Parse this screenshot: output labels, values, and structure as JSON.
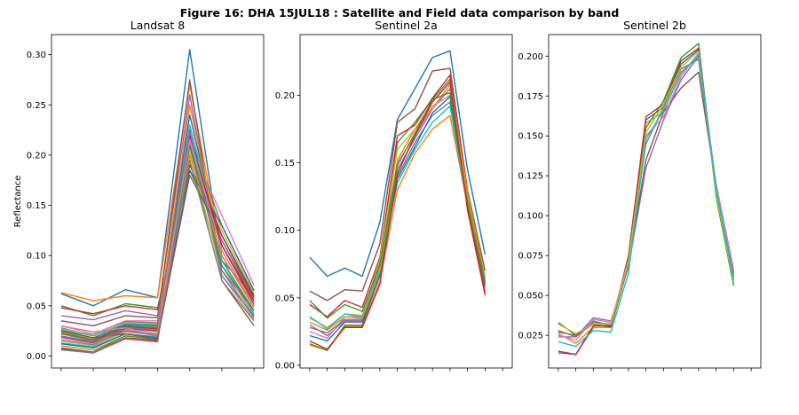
{
  "figure": {
    "title": "Figure 16: DHA 15JUL18 : Satellite and Field data comparison by band"
  },
  "palette": [
    "#1f77b4",
    "#ff7f0e",
    "#2ca02c",
    "#d62728",
    "#9467bd",
    "#8c564b",
    "#e377c2",
    "#7f7f7f",
    "#bcbd22",
    "#17becf"
  ],
  "chart_data": [
    {
      "type": "line",
      "title": "Landsat 8",
      "ylabel": "Reflectance",
      "xlabel": "",
      "grid": false,
      "ylim": [
        -0.012,
        0.32
      ],
      "yticks": [
        "0.00",
        "0.05",
        "0.10",
        "0.15",
        "0.20",
        "0.25",
        "0.30"
      ],
      "x": [
        1,
        2,
        3,
        4,
        5,
        6,
        7
      ],
      "series": [
        {
          "values": [
            0.062,
            0.05,
            0.066,
            0.058,
            0.305,
            0.095,
            0.06
          ]
        },
        {
          "values": [
            0.063,
            0.055,
            0.06,
            0.058,
            0.27,
            0.1,
            0.05
          ]
        },
        {
          "values": [
            0.05,
            0.04,
            0.052,
            0.048,
            0.185,
            0.115,
            0.058
          ]
        },
        {
          "values": [
            0.048,
            0.042,
            0.05,
            0.046,
            0.19,
            0.12,
            0.06
          ]
        },
        {
          "values": [
            0.04,
            0.036,
            0.045,
            0.04,
            0.26,
            0.085,
            0.045
          ]
        },
        {
          "values": [
            0.035,
            0.03,
            0.04,
            0.038,
            0.275,
            0.075,
            0.03
          ]
        },
        {
          "values": [
            0.03,
            0.022,
            0.035,
            0.035,
            0.21,
            0.14,
            0.07
          ]
        },
        {
          "values": [
            0.028,
            0.02,
            0.034,
            0.033,
            0.22,
            0.13,
            0.065
          ]
        },
        {
          "values": [
            0.027,
            0.021,
            0.033,
            0.032,
            0.215,
            0.125,
            0.062
          ]
        },
        {
          "values": [
            0.026,
            0.02,
            0.032,
            0.031,
            0.23,
            0.11,
            0.055
          ]
        },
        {
          "values": [
            0.025,
            0.018,
            0.031,
            0.03,
            0.24,
            0.105,
            0.05
          ]
        },
        {
          "values": [
            0.024,
            0.017,
            0.03,
            0.029,
            0.25,
            0.1,
            0.048
          ]
        },
        {
          "values": [
            0.023,
            0.016,
            0.03,
            0.028,
            0.225,
            0.095,
            0.045
          ]
        },
        {
          "values": [
            0.022,
            0.015,
            0.029,
            0.027,
            0.205,
            0.12,
            0.058
          ]
        },
        {
          "values": [
            0.02,
            0.014,
            0.028,
            0.026,
            0.2,
            0.115,
            0.055
          ]
        },
        {
          "values": [
            0.019,
            0.013,
            0.027,
            0.025,
            0.21,
            0.11,
            0.052
          ]
        },
        {
          "values": [
            0.018,
            0.012,
            0.026,
            0.024,
            0.22,
            0.09,
            0.04
          ]
        },
        {
          "values": [
            0.016,
            0.011,
            0.025,
            0.022,
            0.195,
            0.085,
            0.038
          ]
        },
        {
          "values": [
            0.015,
            0.01,
            0.024,
            0.021,
            0.205,
            0.08,
            0.036
          ]
        },
        {
          "values": [
            0.013,
            0.009,
            0.022,
            0.019,
            0.215,
            0.095,
            0.042
          ]
        },
        {
          "values": [
            0.012,
            0.008,
            0.022,
            0.018,
            0.185,
            0.13,
            0.065
          ]
        },
        {
          "values": [
            0.01,
            0.006,
            0.02,
            0.017,
            0.2,
            0.1,
            0.05
          ]
        },
        {
          "values": [
            0.008,
            0.004,
            0.02,
            0.016,
            0.21,
            0.09,
            0.045
          ]
        },
        {
          "values": [
            0.007,
            0.003,
            0.018,
            0.015,
            0.22,
            0.11,
            0.055
          ]
        },
        {
          "values": [
            0.006,
            0.003,
            0.017,
            0.014,
            0.225,
            0.08,
            0.04
          ]
        },
        {
          "values": [
            0.025,
            0.018,
            0.022,
            0.017,
            0.18,
            0.12,
            0.06
          ]
        },
        {
          "values": [
            0.03,
            0.024,
            0.028,
            0.02,
            0.215,
            0.105,
            0.05
          ]
        },
        {
          "values": [
            0.022,
            0.015,
            0.025,
            0.02,
            0.195,
            0.075,
            0.035
          ]
        }
      ]
    },
    {
      "type": "line",
      "title": "Sentinel 2a",
      "ylabel": "",
      "xlabel": "",
      "grid": false,
      "ylim": [
        -0.002,
        0.245
      ],
      "yticks": [
        "0.00",
        "0.05",
        "0.10",
        "0.15",
        "0.20"
      ],
      "x": [
        1,
        2,
        3,
        4,
        5,
        6,
        7,
        8,
        9,
        10,
        11,
        12
      ],
      "series": [
        {
          "values": [
            0.08,
            0.066,
            0.072,
            0.066,
            0.106,
            0.182,
            0.205,
            0.228,
            0.233,
            0.145,
            0.082,
            null
          ]
        },
        {
          "values": [
            0.015,
            0.011,
            0.03,
            0.03,
            0.062,
            0.13,
            0.157,
            0.175,
            0.185,
            0.118,
            0.058,
            null
          ]
        },
        {
          "values": [
            0.016,
            0.011,
            0.029,
            0.029,
            0.068,
            0.165,
            0.18,
            0.197,
            0.212,
            0.125,
            0.062,
            null
          ]
        },
        {
          "values": [
            0.045,
            0.036,
            0.048,
            0.043,
            0.08,
            0.17,
            0.178,
            0.198,
            0.215,
            0.115,
            0.052,
            null
          ]
        },
        {
          "values": [
            0.03,
            0.022,
            0.033,
            0.033,
            0.07,
            0.145,
            0.168,
            0.19,
            0.205,
            0.12,
            0.058,
            null
          ]
        },
        {
          "values": [
            0.055,
            0.048,
            0.056,
            0.055,
            0.09,
            0.18,
            0.19,
            0.218,
            0.22,
            0.13,
            0.07,
            null
          ]
        },
        {
          "values": [
            0.025,
            0.02,
            0.036,
            0.036,
            0.075,
            0.15,
            0.17,
            0.192,
            0.2,
            0.12,
            0.06,
            null
          ]
        },
        {
          "values": [
            0.028,
            0.024,
            0.034,
            0.034,
            0.072,
            0.14,
            0.165,
            0.185,
            0.195,
            0.118,
            0.058,
            null
          ]
        },
        {
          "values": [
            0.035,
            0.028,
            0.038,
            0.037,
            0.078,
            0.16,
            0.175,
            0.195,
            0.21,
            0.122,
            0.062,
            null
          ]
        },
        {
          "values": [
            0.036,
            0.027,
            0.038,
            0.036,
            0.072,
            0.135,
            0.16,
            0.18,
            0.192,
            0.118,
            0.062,
            null
          ]
        },
        {
          "values": [
            0.022,
            0.018,
            0.032,
            0.032,
            0.066,
            0.138,
            0.162,
            0.187,
            0.199,
            0.12,
            0.06,
            null
          ]
        },
        {
          "values": [
            0.032,
            0.026,
            0.036,
            0.035,
            0.07,
            0.152,
            0.175,
            0.19,
            0.208,
            0.128,
            0.065,
            null
          ]
        },
        {
          "values": [
            0.048,
            0.035,
            0.045,
            0.04,
            0.075,
            0.148,
            0.172,
            0.197,
            0.202,
            0.119,
            0.062,
            null
          ]
        },
        {
          "values": [
            0.018,
            0.012,
            0.028,
            0.028,
            0.06,
            0.142,
            0.17,
            0.195,
            0.21,
            0.116,
            0.054,
            null
          ]
        }
      ]
    },
    {
      "type": "line",
      "title": "Sentinel 2b",
      "ylabel": "",
      "xlabel": "",
      "grid": false,
      "ylim": [
        0.0045,
        0.2135
      ],
      "yticks": [
        "0.025",
        "0.050",
        "0.075",
        "0.100",
        "0.125",
        "0.150",
        "0.175",
        "0.200"
      ],
      "x": [
        1,
        2,
        3,
        4,
        5,
        6,
        7,
        8,
        9,
        10,
        11,
        12
      ],
      "series": [
        {
          "values": [
            0.014,
            0.013,
            0.03,
            0.03,
            0.075,
            0.16,
            0.168,
            0.195,
            0.204,
            0.118,
            0.064,
            null
          ]
        },
        {
          "values": [
            0.026,
            0.02,
            0.03,
            0.03,
            0.072,
            0.158,
            0.165,
            0.19,
            0.2,
            0.115,
            0.06,
            null
          ]
        },
        {
          "values": [
            0.033,
            0.025,
            0.034,
            0.031,
            0.07,
            0.155,
            0.172,
            0.199,
            0.208,
            0.112,
            0.056,
            null
          ]
        },
        {
          "values": [
            0.015,
            0.013,
            0.031,
            0.031,
            0.074,
            0.162,
            0.17,
            0.197,
            0.205,
            0.117,
            0.062,
            null
          ]
        },
        {
          "values": [
            0.024,
            0.024,
            0.036,
            0.034,
            0.068,
            0.13,
            0.16,
            0.185,
            0.2,
            0.12,
            0.066,
            null
          ]
        },
        {
          "values": [
            0.027,
            0.025,
            0.032,
            0.03,
            0.069,
            0.135,
            0.165,
            0.18,
            0.19,
            0.118,
            0.064,
            null
          ]
        },
        {
          "values": [
            0.025,
            0.022,
            0.035,
            0.033,
            0.072,
            0.15,
            0.162,
            0.187,
            0.202,
            0.119,
            0.066,
            null
          ]
        },
        {
          "values": [
            0.028,
            0.024,
            0.033,
            0.032,
            0.07,
            0.145,
            0.168,
            0.192,
            0.198,
            0.116,
            0.062,
            null
          ]
        },
        {
          "values": [
            0.032,
            0.026,
            0.032,
            0.032,
            0.071,
            0.152,
            0.17,
            0.193,
            0.203,
            0.114,
            0.058,
            null
          ]
        },
        {
          "values": [
            0.021,
            0.018,
            0.028,
            0.027,
            0.064,
            0.148,
            0.166,
            0.189,
            0.201,
            0.117,
            0.06,
            null
          ]
        }
      ]
    }
  ]
}
